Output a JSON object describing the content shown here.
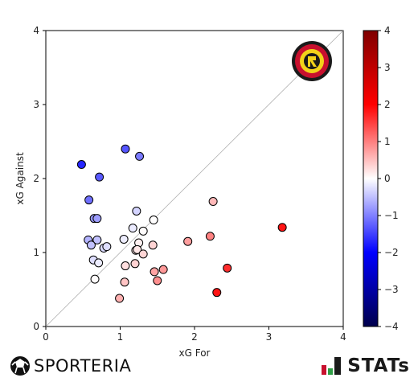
{
  "chart_data": {
    "type": "scatter",
    "title": "",
    "xlabel": "xG For",
    "ylabel": "xG Against",
    "xlim": [
      0,
      4
    ],
    "ylim": [
      0,
      4
    ],
    "xticks": [
      "0",
      "1",
      "2",
      "3",
      "4"
    ],
    "yticks": [
      "0",
      "1",
      "2",
      "3",
      "4"
    ],
    "reference_line": "diagonal y = x",
    "grid": false,
    "color_encoding": "xG For minus xG Against",
    "colorbar": {
      "range": [
        -4,
        4
      ],
      "ticks": [
        "4",
        "3",
        "2",
        "1",
        "0",
        "−1",
        "−2",
        "−3",
        "−4"
      ],
      "colormap": "seismic",
      "colors": [
        "#00004c",
        "#0000ff",
        "#ffffff",
        "#ff0000",
        "#7f0000"
      ],
      "placement": "right"
    },
    "points": [
      {
        "x": 0.48,
        "y": 2.19
      },
      {
        "x": 1.07,
        "y": 2.4
      },
      {
        "x": 1.26,
        "y": 2.3
      },
      {
        "x": 0.72,
        "y": 2.02
      },
      {
        "x": 0.58,
        "y": 1.71
      },
      {
        "x": 0.65,
        "y": 1.46
      },
      {
        "x": 0.69,
        "y": 1.46
      },
      {
        "x": 1.22,
        "y": 1.56
      },
      {
        "x": 1.45,
        "y": 1.44
      },
      {
        "x": 2.25,
        "y": 1.69
      },
      {
        "x": 1.17,
        "y": 1.33
      },
      {
        "x": 1.31,
        "y": 1.29
      },
      {
        "x": 0.57,
        "y": 1.17
      },
      {
        "x": 0.69,
        "y": 1.17
      },
      {
        "x": 1.05,
        "y": 1.18
      },
      {
        "x": 0.61,
        "y": 1.1
      },
      {
        "x": 0.78,
        "y": 1.06
      },
      {
        "x": 0.82,
        "y": 1.08
      },
      {
        "x": 1.25,
        "y": 1.13
      },
      {
        "x": 1.44,
        "y": 1.1
      },
      {
        "x": 1.21,
        "y": 1.03
      },
      {
        "x": 1.23,
        "y": 1.04
      },
      {
        "x": 1.31,
        "y": 0.98
      },
      {
        "x": 0.64,
        "y": 0.9
      },
      {
        "x": 0.71,
        "y": 0.86
      },
      {
        "x": 1.07,
        "y": 0.82
      },
      {
        "x": 1.2,
        "y": 0.85
      },
      {
        "x": 1.46,
        "y": 0.74
      },
      {
        "x": 1.58,
        "y": 0.77
      },
      {
        "x": 1.5,
        "y": 0.62
      },
      {
        "x": 0.66,
        "y": 0.64
      },
      {
        "x": 1.06,
        "y": 0.6
      },
      {
        "x": 0.99,
        "y": 0.38
      },
      {
        "x": 1.91,
        "y": 1.15
      },
      {
        "x": 2.21,
        "y": 1.22
      },
      {
        "x": 2.44,
        "y": 0.79
      },
      {
        "x": 2.3,
        "y": 0.46
      },
      {
        "x": 3.18,
        "y": 1.34
      }
    ]
  },
  "branding": {
    "left_logo_text": "SPORTERIA",
    "left_icon": "soccer-ball-icon",
    "right_logo_text": "STATs",
    "right_icon": "stats-bars-icon",
    "team_crest": "team-crest-icon",
    "crest_colors": [
      "#f2d21a",
      "#c8102e",
      "#1a1a1a"
    ]
  }
}
